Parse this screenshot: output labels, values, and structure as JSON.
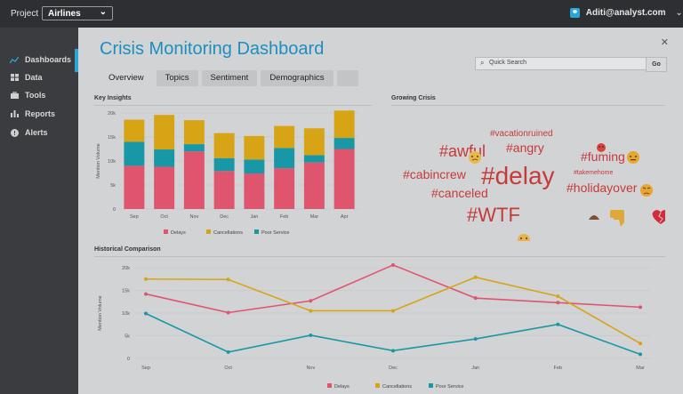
{
  "topbar": {
    "project_label": "Project",
    "project_value": "Airlines",
    "user": "Aditi@analyst.com"
  },
  "sidebar": {
    "items": [
      {
        "label": "Dashboards",
        "icon": "dashboard-icon"
      },
      {
        "label": "Data",
        "icon": "table-icon"
      },
      {
        "label": "Tools",
        "icon": "briefcase-icon"
      },
      {
        "label": "Reports",
        "icon": "bar-chart-icon"
      },
      {
        "label": "Alerts",
        "icon": "alert-icon"
      }
    ]
  },
  "main": {
    "title": "Crisis Monitoring Dashboard",
    "tabs": [
      "Overview",
      "Topics",
      "Sentiment",
      "Demographics"
    ],
    "search_placeholder": "Quick Search",
    "go_label": "Go",
    "key_insights": "Key Insights",
    "growing_crisis": "Growing Crisis",
    "historical": "Historical Comparison"
  },
  "colors": {
    "delays": "#e0556e",
    "cancellations": "#d6a415",
    "poor_service": "#1898a6",
    "accent": "#1d8fbf"
  },
  "chart_data": [
    {
      "type": "bar",
      "title": "Key Insights",
      "ylabel": "Mention Volume",
      "ylim": [
        0,
        20000
      ],
      "yticks": [
        "0",
        "5k",
        "10k",
        "15k",
        "20k"
      ],
      "categories": [
        "Sep",
        "Oct",
        "Nov",
        "Dec",
        "Jan",
        "Feb",
        "Mar",
        "Apr"
      ],
      "stacked": true,
      "series": [
        {
          "name": "Delays",
          "values": [
            9000,
            8800,
            12000,
            7900,
            7400,
            8500,
            9700,
            12500
          ]
        },
        {
          "name": "Poor Service",
          "values": [
            5000,
            3600,
            1500,
            2700,
            2900,
            4200,
            1500,
            2300
          ]
        },
        {
          "name": "Cancellations",
          "values": [
            4600,
            7200,
            5000,
            5200,
            4900,
            4600,
            5600,
            5700
          ]
        }
      ],
      "legend": [
        "Delays",
        "Cancellations",
        "Poor Service"
      ],
      "legend_position": "bottom"
    },
    {
      "type": "line",
      "title": "Historical Comparison",
      "ylabel": "Mention Volume",
      "ylim": [
        0,
        20000
      ],
      "yticks": [
        "0",
        "5k",
        "10k",
        "15k",
        "20k"
      ],
      "x": [
        "Sep",
        "Oct",
        "Nov",
        "Dec",
        "Jan",
        "Feb",
        "Mar"
      ],
      "series": [
        {
          "name": "Delays",
          "values": [
            14200,
            10100,
            12700,
            20600,
            13300,
            12300,
            11300
          ]
        },
        {
          "name": "Cancellations",
          "values": [
            17500,
            17400,
            10500,
            10500,
            17900,
            13700,
            3300
          ]
        },
        {
          "name": "Poor Service",
          "values": [
            9900,
            1400,
            5100,
            1700,
            4300,
            7500,
            900
          ]
        }
      ],
      "legend": [
        "Delays",
        "Cancellations",
        "Poor Service"
      ],
      "legend_position": "bottom"
    }
  ],
  "word_cloud": [
    {
      "text": "#vacationruined",
      "size": 10
    },
    {
      "text": "#awful",
      "size": 18
    },
    {
      "text": "#angry",
      "size": 14
    },
    {
      "text": "#fuming",
      "size": 14
    },
    {
      "text": "#cabincrew",
      "size": 14
    },
    {
      "text": "#delay",
      "size": 28
    },
    {
      "text": "#takemehome",
      "size": 7
    },
    {
      "text": "#canceled",
      "size": 14
    },
    {
      "text": "#holidayover",
      "size": 14
    },
    {
      "text": "#WTF",
      "size": 22
    }
  ]
}
